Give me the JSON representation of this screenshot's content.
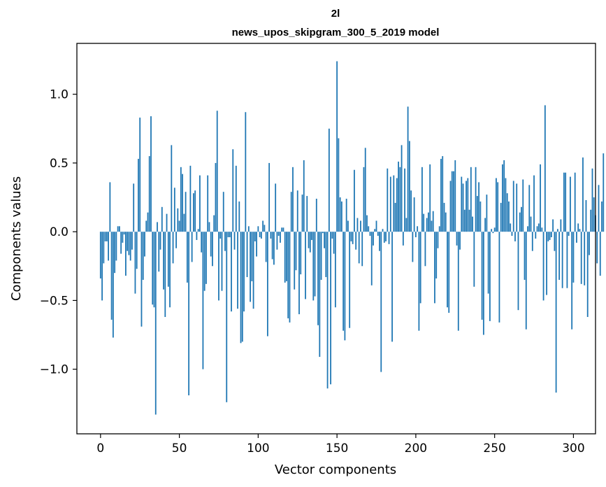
{
  "chart_data": {
    "type": "bar",
    "title_line1": "2l",
    "title_line2": "news_upos_skipgram_300_5_2019 model",
    "xlabel": "Vector components",
    "ylabel": "Components values",
    "xlim": [
      -15,
      314
    ],
    "ylim": [
      -1.47,
      1.37
    ],
    "xticks": [
      0,
      50,
      100,
      150,
      200,
      250,
      300
    ],
    "xtick_labels": [
      "0",
      "50",
      "100",
      "150",
      "200",
      "250",
      "300"
    ],
    "yticks": [
      -1.0,
      -0.5,
      0.0,
      0.5,
      1.0
    ],
    "ytick_labels": [
      "−1.0",
      "−0.5",
      "0.0",
      "0.5",
      "1.0"
    ],
    "bar_color": "#1f77b4",
    "values": [
      -0.34,
      -0.5,
      -0.23,
      -0.07,
      -0.07,
      -0.21,
      0.36,
      -0.64,
      -0.77,
      -0.3,
      -0.21,
      0.04,
      0.04,
      -0.16,
      -0.08,
      -0.02,
      -0.32,
      -0.14,
      -0.17,
      -0.21,
      -0.13,
      0.35,
      -0.45,
      -0.27,
      0.53,
      0.83,
      -0.69,
      -0.35,
      -0.18,
      0.08,
      0.14,
      0.55,
      0.84,
      -0.53,
      -0.55,
      -1.33,
      0.07,
      -0.29,
      -0.13,
      0.18,
      -0.42,
      -0.62,
      0.13,
      -0.4,
      -0.55,
      0.63,
      -0.23,
      0.32,
      -0.12,
      0.17,
      0.08,
      0.47,
      0.42,
      0.13,
      0.29,
      -0.37,
      -1.19,
      0.48,
      -0.22,
      0.28,
      0.3,
      -0.06,
      0.02,
      0.41,
      -0.15,
      -1.0,
      -0.43,
      -0.38,
      0.41,
      0.07,
      -0.18,
      -0.25,
      0.12,
      0.5,
      0.88,
      -0.5,
      -0.05,
      -0.43,
      0.29,
      -0.14,
      -1.24,
      -0.04,
      -0.04,
      -0.58,
      0.6,
      -0.13,
      0.48,
      -0.56,
      0.22,
      -0.81,
      -0.8,
      -0.58,
      0.87,
      -0.33,
      0.04,
      -0.51,
      -0.36,
      -0.56,
      -0.07,
      -0.18,
      0.04,
      -0.04,
      -0.05,
      0.08,
      0.05,
      -0.22,
      -0.76,
      0.5,
      -0.05,
      -0.2,
      -0.24,
      0.35,
      -0.13,
      -0.03,
      -0.08,
      0.03,
      0.03,
      -0.37,
      -0.36,
      -0.63,
      -0.66,
      0.29,
      0.47,
      -0.42,
      -0.28,
      0.3,
      -0.6,
      -0.31,
      0.27,
      0.52,
      -0.49,
      0.26,
      -0.12,
      -0.15,
      -0.06,
      -0.5,
      -0.47,
      0.24,
      -0.68,
      -0.91,
      -0.35,
      -0.01,
      -0.12,
      -0.33,
      -1.14,
      0.75,
      -1.11,
      -0.05,
      -0.16,
      -0.55,
      1.24,
      0.68,
      0.25,
      0.22,
      -0.72,
      -0.79,
      0.24,
      0.08,
      -0.7,
      -0.07,
      -0.09,
      0.45,
      -0.13,
      0.1,
      -0.23,
      0.08,
      -0.25,
      0.47,
      0.61,
      0.12,
      0.04,
      -0.03,
      -0.39,
      -0.1,
      0.02,
      0.08,
      -0.03,
      -0.14,
      -1.02,
      0.02,
      -0.08,
      -0.07,
      0.46,
      -0.09,
      0.4,
      -0.8,
      0.41,
      0.21,
      0.39,
      0.51,
      0.47,
      0.63,
      -0.1,
      0.46,
      0.1,
      0.91,
      0.66,
      0.3,
      -0.22,
      0.25,
      -0.04,
      0.04,
      -0.72,
      -0.52,
      0.47,
      0.13,
      -0.25,
      0.1,
      0.14,
      0.49,
      0.08,
      0.15,
      -0.52,
      -0.34,
      -0.12,
      0.04,
      0.53,
      0.55,
      0.21,
      0.14,
      -0.55,
      -0.59,
      0.37,
      0.44,
      0.44,
      0.52,
      -0.1,
      -0.72,
      -0.13,
      0.4,
      0.35,
      0.16,
      0.37,
      0.39,
      0.16,
      0.47,
      0.11,
      -0.4,
      0.47,
      0.26,
      0.36,
      0.22,
      -0.64,
      -0.75,
      0.1,
      0.27,
      -0.45,
      -0.65,
      0.02,
      -0.01,
      0.03,
      0.39,
      0.36,
      -0.66,
      0.21,
      0.49,
      0.52,
      0.39,
      0.28,
      0.22,
      0.06,
      -0.03,
      0.37,
      -0.07,
      0.35,
      -0.57,
      0.14,
      0.18,
      0.38,
      -0.35,
      -0.71,
      0.04,
      0.34,
      0.11,
      -0.14,
      0.41,
      -0.05,
      0.04,
      0.06,
      0.49,
      0.03,
      -0.5,
      0.92,
      -0.46,
      -0.07,
      -0.06,
      -0.04,
      0.09,
      -0.14,
      -1.17,
      0.02,
      -0.35,
      0.09,
      -0.41,
      0.43,
      0.43,
      -0.41,
      -0.03,
      0.4,
      -0.71,
      -0.37,
      0.43,
      -0.08,
      0.06,
      0.02,
      -0.38,
      0.54,
      -0.39,
      0.23,
      -0.62,
      -0.17,
      0.16,
      0.46,
      0.25,
      0.12,
      -0.23,
      0.34,
      -0.32,
      0.22,
      0.57
    ]
  }
}
